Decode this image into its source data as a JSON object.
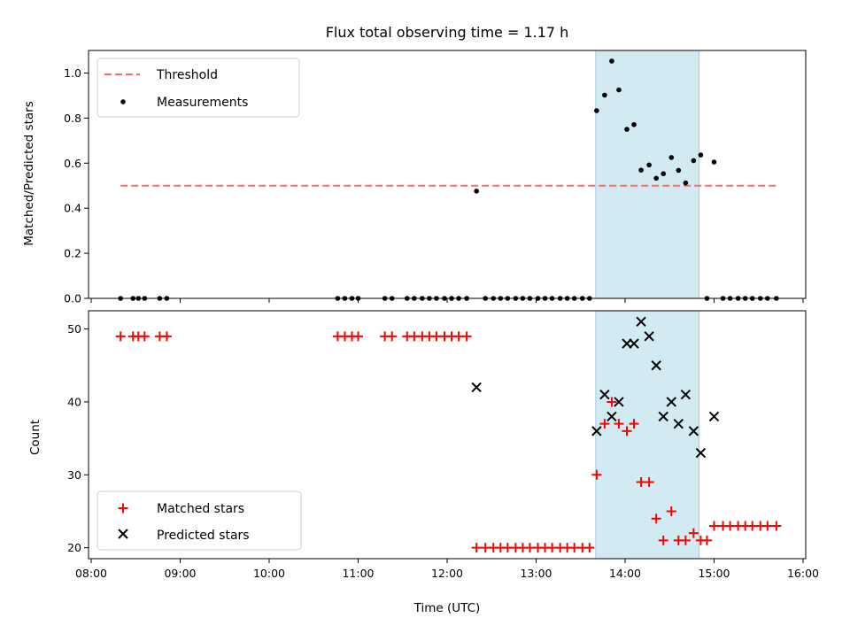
{
  "chart_data": {
    "title": "Flux total observing time = 1.17 h",
    "xlabel": "Time (UTC)",
    "x_ticks": [
      "08:00",
      "09:00",
      "10:00",
      "11:00",
      "12:00",
      "13:00",
      "14:00",
      "15:00",
      "16:00"
    ],
    "x_range_hours": [
      7.97,
      16.03
    ],
    "highlight_band_hours": [
      13.67,
      14.83
    ],
    "highlight_color": "#add8e6",
    "panels": [
      {
        "type": "scatter",
        "ylabel": "Matched/Predicted stars",
        "ylim": [
          0,
          1.1
        ],
        "y_ticks": [
          "0.0",
          "0.2",
          "0.4",
          "0.6",
          "0.8",
          "1.0"
        ],
        "y_tick_values": [
          0,
          0.2,
          0.4,
          0.6,
          0.8,
          1.0
        ],
        "legend_position": "upper-left",
        "threshold": {
          "name": "Threshold",
          "value": 0.5,
          "x_range_hours": [
            8.33,
            15.7
          ],
          "color": "#ff6b6b"
        },
        "measurements": {
          "name": "Measurements",
          "color": "#000000",
          "x_hours": [
            8.33,
            8.47,
            8.53,
            8.6,
            8.77,
            8.85,
            10.77,
            10.85,
            10.93,
            11.0,
            11.3,
            11.38,
            11.55,
            11.63,
            11.72,
            11.8,
            11.88,
            11.97,
            12.05,
            12.13,
            12.22,
            12.33,
            12.43,
            12.52,
            12.6,
            12.68,
            12.77,
            12.85,
            12.93,
            13.02,
            13.1,
            13.18,
            13.27,
            13.35,
            13.43,
            13.52,
            13.6,
            13.68,
            13.77,
            13.85,
            13.93,
            14.02,
            14.1,
            14.18,
            14.27,
            14.35,
            14.43,
            14.52,
            14.6,
            14.68,
            14.77,
            14.85,
            14.92,
            15.0,
            15.1,
            15.18,
            15.27,
            15.35,
            15.43,
            15.52,
            15.6,
            15.7
          ],
          "y_values": [
            0,
            0,
            0,
            0,
            0,
            0,
            0,
            0,
            0,
            0,
            0,
            0,
            0,
            0,
            0,
            0,
            0,
            0,
            0,
            0,
            0,
            0.476,
            0,
            0,
            0,
            0,
            0,
            0,
            0,
            0,
            0,
            0,
            0,
            0,
            0,
            0,
            0,
            0.833,
            0.902,
            1.053,
            0.925,
            0.75,
            0.771,
            0.569,
            0.592,
            0.533,
            0.553,
            0.625,
            0.568,
            0.512,
            0.611,
            0.636,
            0.0,
            0.605,
            0,
            0,
            0,
            0,
            0,
            0,
            0,
            0
          ]
        }
      },
      {
        "type": "scatter",
        "ylabel": "Count",
        "ylim": [
          18.5,
          52.5
        ],
        "y_ticks": [
          "20",
          "30",
          "40",
          "50"
        ],
        "y_tick_values": [
          20,
          30,
          40,
          50
        ],
        "legend_position": "lower-left",
        "series": [
          {
            "name": "Matched stars",
            "marker": "plus",
            "color": "#ff0000",
            "x_hours": [
              8.33,
              8.47,
              8.53,
              8.6,
              8.77,
              8.85,
              10.77,
              10.85,
              10.93,
              11.0,
              11.3,
              11.38,
              11.55,
              11.63,
              11.72,
              11.8,
              11.88,
              11.97,
              12.05,
              12.13,
              12.22,
              12.33,
              12.43,
              12.52,
              12.6,
              12.68,
              12.77,
              12.85,
              12.93,
              13.02,
              13.1,
              13.18,
              13.27,
              13.35,
              13.43,
              13.52,
              13.6,
              13.68,
              13.77,
              13.85,
              13.93,
              14.02,
              14.1,
              14.18,
              14.27,
              14.35,
              14.43,
              14.52,
              14.6,
              14.68,
              14.77,
              14.85,
              14.92,
              15.0,
              15.1,
              15.18,
              15.27,
              15.35,
              15.43,
              15.52,
              15.6,
              15.7
            ],
            "y_values": [
              49,
              49,
              49,
              49,
              49,
              49,
              49,
              49,
              49,
              49,
              49,
              49,
              49,
              49,
              49,
              49,
              49,
              49,
              49,
              49,
              49,
              20,
              20,
              20,
              20,
              20,
              20,
              20,
              20,
              20,
              20,
              20,
              20,
              20,
              20,
              20,
              20,
              30,
              37,
              40,
              37,
              36,
              37,
              29,
              29,
              24,
              21,
              25,
              21,
              21,
              22,
              21,
              21,
              23,
              23,
              23,
              23,
              23,
              23,
              23,
              23,
              23
            ]
          },
          {
            "name": "Predicted stars",
            "marker": "x",
            "color": "#000000",
            "x_hours": [
              12.33,
              13.68,
              13.77,
              13.85,
              13.93,
              14.02,
              14.1,
              14.18,
              14.27,
              14.35,
              14.43,
              14.52,
              14.6,
              14.68,
              14.77,
              14.85,
              15.0
            ],
            "y_values": [
              42,
              36,
              41,
              38,
              40,
              48,
              48,
              51,
              49,
              45,
              38,
              40,
              37,
              41,
              36,
              33,
              38
            ]
          }
        ]
      }
    ]
  }
}
